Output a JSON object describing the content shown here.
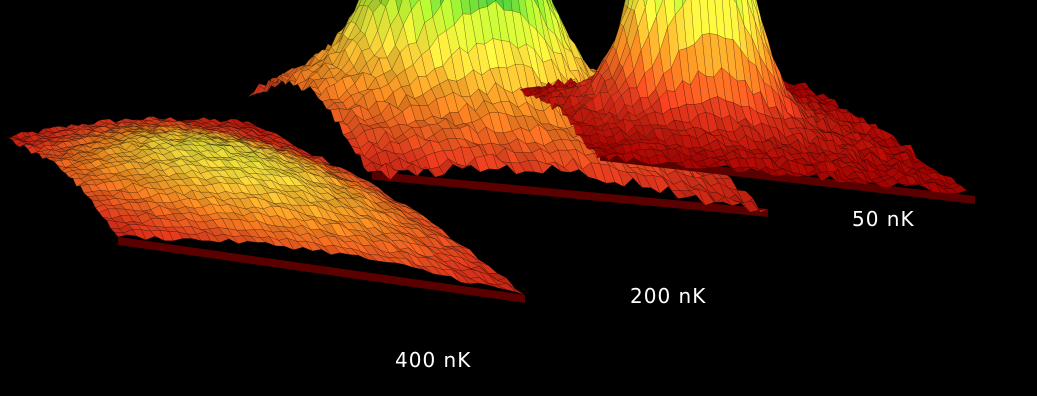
{
  "chart_data": {
    "type": "surface3d",
    "grid": false,
    "legend": "none",
    "colormap": [
      "#a80000",
      "#e23b1e",
      "#f28a22",
      "#f3d93a",
      "#9fdc2c",
      "#1fa83a",
      "#2f63d4",
      "#8fb6ff",
      "#ffffff"
    ],
    "background": "#000000",
    "series": [
      {
        "name": "400 nK",
        "peak_height": 0.4,
        "peak_width": 0.38
      },
      {
        "name": "200 nK",
        "peak_height": 1.0,
        "peak_width": 0.13,
        "shoulder_height": 0.4,
        "shoulder_width": 0.4
      },
      {
        "name": "50 nK",
        "peak_height": 1.0,
        "peak_width": 0.12,
        "shoulder_height": 0.12,
        "shoulder_width": 0.3
      }
    ]
  }
}
